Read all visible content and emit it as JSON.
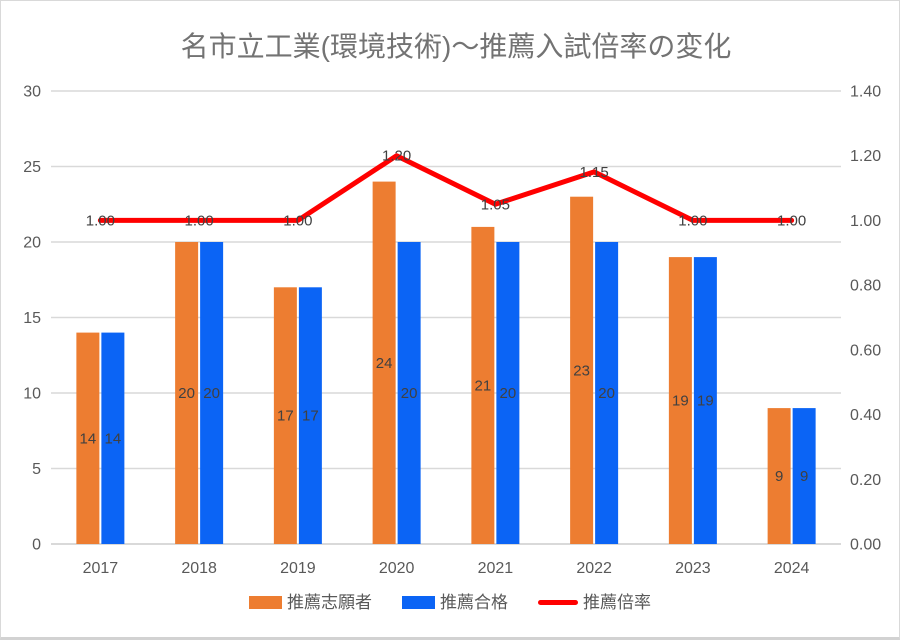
{
  "title": "名市立工業(環境技術)～推薦入試倍率の変化",
  "chart_data": {
    "type": "bar",
    "subtype": "combo-bar-line",
    "categories": [
      "2017",
      "2018",
      "2019",
      "2020",
      "2021",
      "2022",
      "2023",
      "2024"
    ],
    "series": [
      {
        "name": "推薦志願者",
        "type": "bar",
        "axis": "left",
        "color": "#ED7D31",
        "values": [
          14,
          20,
          17,
          24,
          21,
          23,
          19,
          9
        ],
        "labels": [
          "14",
          "20",
          "17",
          "24",
          "21",
          "23",
          "19",
          "9"
        ]
      },
      {
        "name": "推薦合格",
        "type": "bar",
        "axis": "left",
        "color": "#0B64F5",
        "values": [
          14,
          20,
          17,
          20,
          20,
          20,
          19,
          9
        ],
        "labels": [
          "14",
          "20",
          "17",
          "20",
          "20",
          "20",
          "19",
          "9"
        ]
      },
      {
        "name": "推薦倍率",
        "type": "line",
        "axis": "right",
        "color": "#FF0000",
        "values": [
          1.0,
          1.0,
          1.0,
          1.2,
          1.05,
          1.15,
          1.0,
          1.0
        ],
        "labels": [
          "1.00",
          "1.00",
          "1.00",
          "1.20",
          "1.05",
          "1.15",
          "1.00",
          "1.00"
        ]
      }
    ],
    "left_axis": {
      "min": 0,
      "max": 30,
      "step": 5,
      "tick_values": [
        0,
        5,
        10,
        15,
        20,
        25,
        30
      ],
      "tick_labels": [
        "0",
        "5",
        "10",
        "15",
        "20",
        "25",
        "30"
      ]
    },
    "right_axis": {
      "min": 0,
      "max": 1.4,
      "step": 0.2,
      "tick_values": [
        0,
        0.2,
        0.4,
        0.6,
        0.8,
        1.0,
        1.2,
        1.4
      ],
      "tick_labels": [
        "0.00",
        "0.20",
        "0.40",
        "0.60",
        "0.80",
        "1.00",
        "1.20",
        "1.40"
      ]
    },
    "grid": true,
    "legend_position": "bottom",
    "colors": {
      "gridline": "#D9D9D9",
      "axis_line": "#D9D9D9",
      "tick_text": "#595959",
      "data_label_text": "#404040",
      "title_text": "#737373"
    }
  }
}
